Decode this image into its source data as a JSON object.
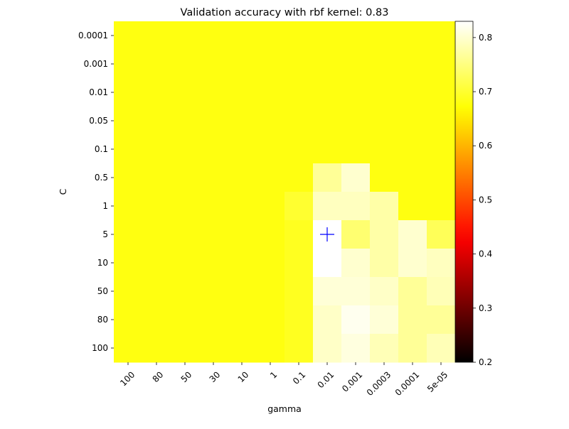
{
  "chart_data": {
    "type": "heatmap",
    "title": "Validation accuracy with rbf kernel: 0.83",
    "xlabel": "gamma",
    "ylabel": "C",
    "x_categories": [
      "100",
      "80",
      "50",
      "30",
      "10",
      "1",
      "0.1",
      "0.01",
      "0.001",
      "0.0003",
      "0.0001",
      "5e-05"
    ],
    "y_categories": [
      "0.0001",
      "0.001",
      "0.01",
      "0.05",
      "0.1",
      "0.5",
      "1",
      "5",
      "10",
      "50",
      "80",
      "100"
    ],
    "values": [
      [
        0.68,
        0.68,
        0.68,
        0.68,
        0.68,
        0.68,
        0.68,
        0.68,
        0.68,
        0.68,
        0.68,
        0.68
      ],
      [
        0.68,
        0.68,
        0.68,
        0.68,
        0.68,
        0.68,
        0.68,
        0.68,
        0.68,
        0.68,
        0.68,
        0.68
      ],
      [
        0.68,
        0.68,
        0.68,
        0.68,
        0.68,
        0.68,
        0.68,
        0.68,
        0.68,
        0.68,
        0.68,
        0.68
      ],
      [
        0.68,
        0.68,
        0.68,
        0.68,
        0.68,
        0.68,
        0.68,
        0.68,
        0.68,
        0.68,
        0.68,
        0.68
      ],
      [
        0.68,
        0.68,
        0.68,
        0.68,
        0.68,
        0.68,
        0.68,
        0.68,
        0.68,
        0.68,
        0.68,
        0.68
      ],
      [
        0.68,
        0.68,
        0.68,
        0.68,
        0.68,
        0.68,
        0.68,
        0.765,
        0.8,
        0.68,
        0.68,
        0.68
      ],
      [
        0.68,
        0.68,
        0.68,
        0.68,
        0.68,
        0.68,
        0.7,
        0.79,
        0.79,
        0.775,
        0.68,
        0.68
      ],
      [
        0.68,
        0.68,
        0.68,
        0.68,
        0.68,
        0.68,
        0.69,
        0.83,
        0.74,
        0.775,
        0.8,
        0.725
      ],
      [
        0.68,
        0.68,
        0.68,
        0.68,
        0.68,
        0.68,
        0.69,
        0.83,
        0.8,
        0.775,
        0.8,
        0.79
      ],
      [
        0.68,
        0.68,
        0.68,
        0.68,
        0.68,
        0.68,
        0.69,
        0.805,
        0.805,
        0.795,
        0.765,
        0.785
      ],
      [
        0.68,
        0.68,
        0.68,
        0.68,
        0.68,
        0.68,
        0.69,
        0.795,
        0.82,
        0.805,
        0.765,
        0.765
      ],
      [
        0.68,
        0.68,
        0.68,
        0.68,
        0.68,
        0.68,
        0.69,
        0.795,
        0.81,
        0.785,
        0.765,
        0.785
      ]
    ],
    "colormap": "hot",
    "vmin": 0.2,
    "vmax": 0.83,
    "colorbar_ticks": [
      "0.2",
      "0.3",
      "0.4",
      "0.5",
      "0.6",
      "0.7",
      "0.8"
    ],
    "marker": {
      "symbol": "+",
      "x": "0.01",
      "y": "5",
      "color": "#0000ff"
    }
  }
}
